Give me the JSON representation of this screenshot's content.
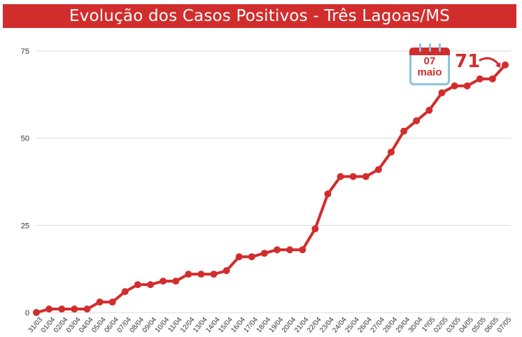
{
  "title": "Evolução dos Casos Positivos - Três Lagoas/MS",
  "callout": {
    "day": "07",
    "month": "maio",
    "value": "71"
  },
  "colors": {
    "accent": "#d22d2d",
    "calendar_blue": "#8fc3dd",
    "grid": "#d9d9d9"
  },
  "chart_data": {
    "type": "line",
    "title": "Evolução dos Casos Positivos - Três Lagoas/MS",
    "xlabel": "",
    "ylabel": "",
    "ylim": [
      0,
      80
    ],
    "yticks": [
      0,
      25,
      50,
      75
    ],
    "grid": true,
    "categories": [
      "31/03",
      "01/04",
      "02/04",
      "03/04",
      "04/04",
      "05/04",
      "06/04",
      "07/04",
      "08/04",
      "09/04",
      "10/04",
      "11/04",
      "12/04",
      "13/04",
      "14/04",
      "15/04",
      "16/04",
      "17/04",
      "18/04",
      "19/04",
      "20/04",
      "21/04",
      "22/04",
      "23/04",
      "24/04",
      "25/04",
      "26/04",
      "27/04",
      "28/04",
      "29/04",
      "30/04",
      "1º/05",
      "02/05",
      "03/05",
      "04/05",
      "05/05",
      "06/05",
      "07/05"
    ],
    "series": [
      {
        "values": [
          0,
          1,
          1,
          1,
          1,
          3,
          3,
          6,
          8,
          8,
          9,
          9,
          11,
          11,
          11,
          12,
          16,
          16,
          17,
          18,
          18,
          18,
          24,
          34,
          39,
          39,
          39,
          41,
          46,
          52,
          55,
          58,
          63,
          65,
          65,
          67,
          67,
          71
        ]
      }
    ]
  }
}
